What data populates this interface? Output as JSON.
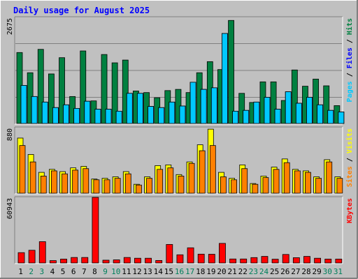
{
  "chart_data": {
    "type": "bar",
    "title": "Daily usage for August 2025",
    "categories": [
      "1",
      "2",
      "3",
      "4",
      "5",
      "6",
      "7",
      "8",
      "9",
      "10",
      "11",
      "12",
      "13",
      "14",
      "15",
      "16",
      "17",
      "18",
      "19",
      "20",
      "21",
      "22",
      "23",
      "24",
      "25",
      "26",
      "27",
      "28",
      "29",
      "30",
      "31"
    ],
    "weekend_days": [
      "2",
      "3",
      "9",
      "10",
      "16",
      "17",
      "23",
      "24",
      "30",
      "31"
    ],
    "panels": [
      {
        "id": "hits-files-pages",
        "max_label": "2675",
        "ylim": [
          0,
          2675
        ],
        "legend": [
          {
            "text": "Pages",
            "color": "#00c8ff"
          },
          {
            "text": "Files",
            "color": "#0000ff"
          },
          {
            "text": "Hits",
            "color": "#008040"
          }
        ],
        "series": [
          {
            "name": "Hits",
            "color": "#008040",
            "values": [
              1790,
              1280,
              1870,
              1250,
              1660,
              680,
              1830,
              570,
              1740,
              1530,
              1600,
              820,
              780,
              650,
              830,
              860,
              780,
              1280,
              1560,
              1360,
              2600,
              760,
              530,
              1050,
              1050,
              580,
              1350,
              940,
              1120,
              950,
              450
            ]
          },
          {
            "name": "Files",
            "color": "#0000ff",
            "values": [
              960,
              680,
              540,
              400,
              470,
              380,
              560,
              360,
              360,
              310,
              760,
              760,
              430,
              400,
              540,
              440,
              1040,
              860,
              900,
              2270,
              310,
              330,
              540,
              660,
              360,
              800,
              510,
              660,
              470,
              330,
              290
            ]
          },
          {
            "name": "Pages",
            "color": "#00c8ff",
            "values": [
              960,
              680,
              540,
              400,
              470,
              380,
              560,
              360,
              360,
              310,
              760,
              760,
              430,
              400,
              540,
              440,
              1040,
              860,
              900,
              2270,
              310,
              330,
              540,
              660,
              360,
              800,
              510,
              660,
              470,
              330,
              290
            ]
          }
        ]
      },
      {
        "id": "visits-sites",
        "max_label": "880",
        "ylim": [
          0,
          880
        ],
        "legend": [
          {
            "text": "Sites",
            "color": "#ff8000"
          },
          {
            "text": "Visits",
            "color": "#ffff00"
          }
        ],
        "series": [
          {
            "name": "Visits",
            "color": "#ffff00",
            "values": [
              740,
              520,
              280,
              320,
              290,
              340,
              360,
              190,
              200,
              220,
              290,
              120,
              220,
              370,
              380,
              250,
              420,
              650,
              860,
              280,
              200,
              380,
              130,
              230,
              350,
              460,
              320,
              300,
              220,
              450,
              220
            ]
          },
          {
            "name": "Sites",
            "color": "#ff8000",
            "values": [
              640,
              420,
              230,
              300,
              260,
              310,
              330,
              180,
              180,
              200,
              260,
              110,
              200,
              320,
              340,
              230,
              400,
              570,
              640,
              220,
              180,
              330,
              120,
              210,
              320,
              410,
              300,
              280,
              200,
              420,
              200
            ]
          }
        ]
      },
      {
        "id": "kbytes",
        "max_label": "60943",
        "ylim": [
          0,
          60943
        ],
        "legend": [
          {
            "text": "KBytes",
            "color": "#ff0000"
          }
        ],
        "series": [
          {
            "name": "KBytes",
            "color": "#ff0000",
            "values": [
              9600,
              11800,
              19800,
              2200,
              3600,
              5100,
              5100,
              60943,
              2600,
              2900,
              5100,
              4400,
              4400,
              2300,
              17200,
              7600,
              14100,
              8200,
              8100,
              18200,
              3700,
              3700,
              5000,
              6100,
              3500,
              7900,
              4900,
              6100,
              4400,
              3600,
              3600
            ]
          }
        ]
      }
    ],
    "colors": {
      "background": "#c0c0c0",
      "title": "#0000ff",
      "weekday_label": "#000000",
      "weekend_label": "#00805c",
      "gridline": "#808080"
    }
  }
}
